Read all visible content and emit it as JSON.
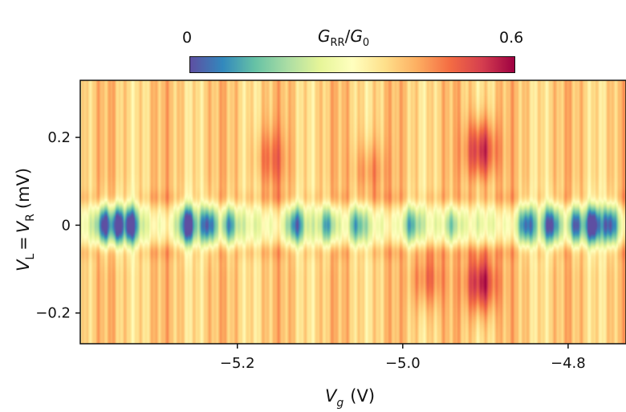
{
  "chart_data": {
    "type": "heatmap",
    "title": "",
    "xlabel": {
      "symbol": "V",
      "subscript": "g",
      "unit": "(V)"
    },
    "ylabel": {
      "left_symbol": "V",
      "left_subscript": "L",
      "equals": "=",
      "right_symbol": "V",
      "right_subscript": "R",
      "unit": "(mV)"
    },
    "xlim": [
      -5.39,
      -4.73
    ],
    "ylim": [
      -0.27,
      0.33
    ],
    "xticks": [
      -5.2,
      -5.0,
      -4.8
    ],
    "xtick_labels": [
      "−5.2",
      "−5.0",
      "−4.8"
    ],
    "yticks": [
      0.2,
      0,
      -0.2
    ],
    "ytick_labels": [
      "0.2",
      "0",
      "−0.2"
    ],
    "colorbar": {
      "label_numerator": "G",
      "label_numerator_sub": "RR",
      "label_slash": "/",
      "label_denominator": "G",
      "label_denominator_sub": "0",
      "min": 0,
      "max": 0.6,
      "min_label": "0",
      "max_label": "0.6",
      "colormap": [
        "#5e4fa2",
        "#3288bd",
        "#66c2a5",
        "#abdda4",
        "#e6f598",
        "#ffffbf",
        "#fee08b",
        "#fdae61",
        "#f46d43",
        "#d53e4f",
        "#9e0142"
      ]
    },
    "description": "Differential conductance G_RR/G0 versus gate voltage Vg and bias VL=VR; low-conductance (blue) oscillating features near zero bias, higher conductance (red) at finite bias with a maximum near Vg = -4.9 V.",
    "z_features": {
      "background": 0.38,
      "zero_bias_minima": [
        {
          "vg": -5.36,
          "g": 0.08
        },
        {
          "vg": -5.345,
          "g": 0.07
        },
        {
          "vg": -5.33,
          "g": 0.1
        },
        {
          "vg": -5.26,
          "g": 0.1
        },
        {
          "vg": -5.235,
          "g": 0.12
        },
        {
          "vg": -5.21,
          "g": 0.18
        },
        {
          "vg": -5.13,
          "g": 0.16
        },
        {
          "vg": -5.09,
          "g": 0.2
        },
        {
          "vg": -5.055,
          "g": 0.22
        },
        {
          "vg": -4.99,
          "g": 0.22
        },
        {
          "vg": -4.94,
          "g": 0.24
        },
        {
          "vg": -4.85,
          "g": 0.14
        },
        {
          "vg": -4.82,
          "g": 0.12
        },
        {
          "vg": -4.79,
          "g": 0.13
        },
        {
          "vg": -4.77,
          "g": 0.08
        },
        {
          "vg": -4.75,
          "g": 0.12
        }
      ],
      "finite_bias_maxima": [
        {
          "vg": -4.905,
          "v": 0.17,
          "g": 0.58
        },
        {
          "vg": -4.905,
          "v": -0.13,
          "g": 0.6
        },
        {
          "vg": -5.16,
          "v": 0.15,
          "g": 0.47
        },
        {
          "vg": -5.04,
          "v": 0.12,
          "g": 0.47
        },
        {
          "vg": -4.97,
          "v": -0.12,
          "g": 0.5
        }
      ]
    }
  }
}
